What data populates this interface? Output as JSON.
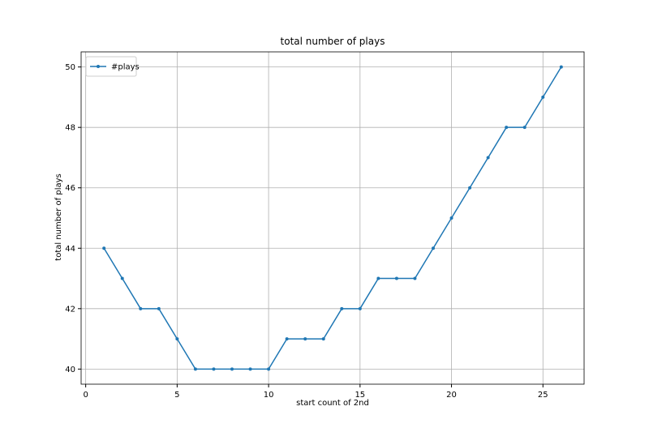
{
  "chart_data": {
    "type": "line",
    "title": "total number of plays",
    "xlabel": "start count of 2nd",
    "ylabel": "total number of plays",
    "x": [
      1,
      2,
      3,
      4,
      5,
      6,
      7,
      8,
      9,
      10,
      11,
      12,
      13,
      14,
      15,
      16,
      17,
      18,
      19,
      20,
      21,
      22,
      23,
      24,
      25,
      26
    ],
    "series": [
      {
        "name": "#plays",
        "color": "#1f77b4",
        "values": [
          44,
          43,
          42,
          42,
          41,
          40,
          40,
          40,
          40,
          40,
          41,
          41,
          41,
          42,
          42,
          43,
          43,
          43,
          44,
          45,
          46,
          47,
          48,
          48,
          49,
          50
        ]
      }
    ],
    "xlim": [
      -0.25,
      27.25
    ],
    "ylim": [
      39.5,
      50.5
    ],
    "xticks": [
      0,
      5,
      10,
      15,
      20,
      25
    ],
    "yticks": [
      40,
      42,
      44,
      46,
      48,
      50
    ],
    "grid": true,
    "legend": "upper left",
    "marker": true
  }
}
